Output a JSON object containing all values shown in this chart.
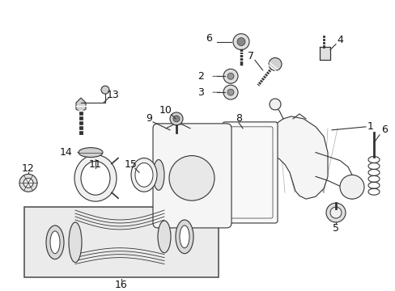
{
  "bg_color": "#ffffff",
  "fig_width": 4.89,
  "fig_height": 3.6,
  "dpi": 100,
  "line_color": "#333333",
  "text_color": "#111111",
  "light_gray": "#e8e8e8",
  "mid_gray": "#b0b0b0",
  "dark_gray": "#555555"
}
